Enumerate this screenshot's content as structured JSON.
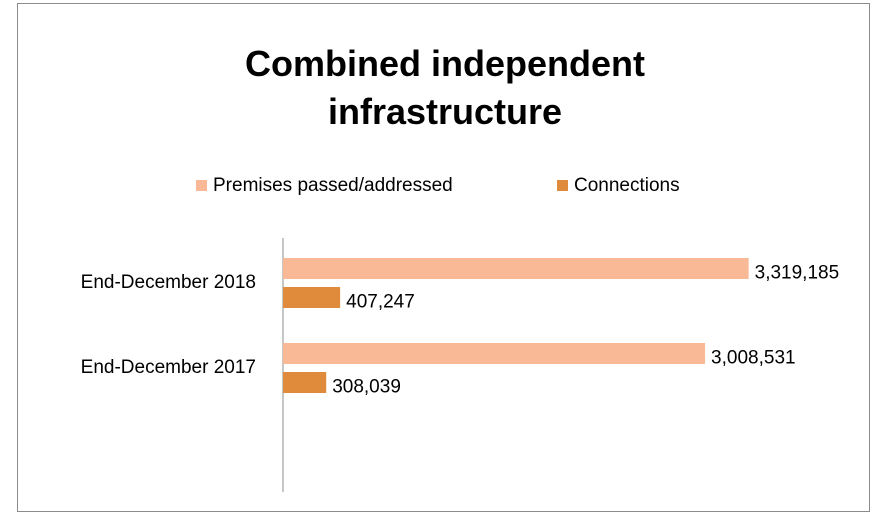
{
  "chart_data": {
    "type": "bar",
    "orientation": "horizontal",
    "title": "Combined independent infrastructure",
    "categories": [
      "End-December 2018",
      "End-December 2017"
    ],
    "series": [
      {
        "name": "Premises passed/addressed",
        "color": "#f9b896",
        "values": [
          3319185,
          3008531
        ],
        "value_labels": [
          "3,319,185",
          "3,008,531"
        ]
      },
      {
        "name": "Connections",
        "color": "#e08a3c",
        "values": [
          407247,
          308039
        ],
        "value_labels": [
          "407,247",
          "308,039"
        ]
      }
    ],
    "xlim": [
      0,
      3500000
    ],
    "legend": "top"
  }
}
